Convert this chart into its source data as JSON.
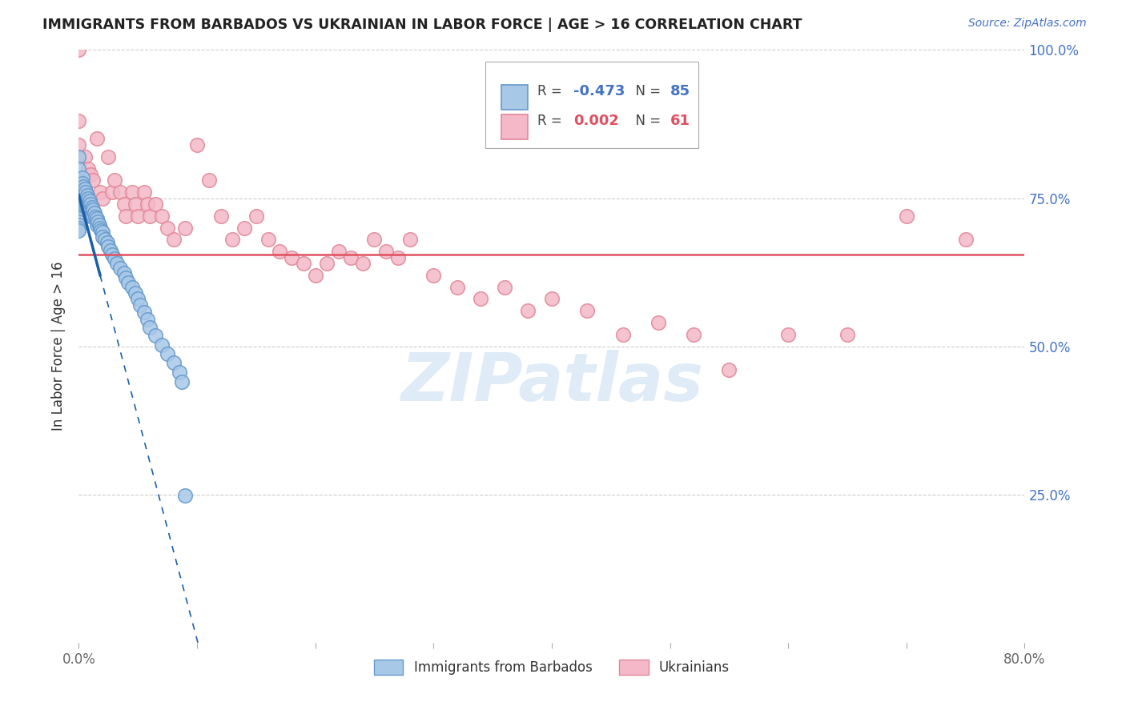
{
  "title": "IMMIGRANTS FROM BARBADOS VS UKRAINIAN IN LABOR FORCE | AGE > 16 CORRELATION CHART",
  "source": "Source: ZipAtlas.com",
  "ylabel": "In Labor Force | Age > 16",
  "xlim": [
    0.0,
    0.8
  ],
  "ylim": [
    0.0,
    1.0
  ],
  "barbados_color": "#a8c8e8",
  "barbados_edge": "#6699cc",
  "ukrainian_color": "#f4b8c8",
  "ukrainian_edge": "#e08898",
  "trendline_barbados_color": "#1a5fa8",
  "trendline_ukrainian_color": "#e05060",
  "R_barbados": -0.473,
  "N_barbados": 85,
  "R_ukrainian": 0.002,
  "N_ukrainian": 61,
  "watermark": "ZIPatlas",
  "grid_color": "#cccccc",
  "right_axis_color": "#4472c4",
  "barbados_x": [
    0.0,
    0.0,
    0.0,
    0.0,
    0.0,
    0.0,
    0.0,
    0.0,
    0.0,
    0.0,
    0.0,
    0.0,
    0.0,
    0.0,
    0.0,
    0.0,
    0.0,
    0.0,
    0.0,
    0.0,
    0.003,
    0.003,
    0.003,
    0.003,
    0.003,
    0.004,
    0.004,
    0.004,
    0.004,
    0.005,
    0.005,
    0.005,
    0.006,
    0.006,
    0.006,
    0.007,
    0.007,
    0.007,
    0.008,
    0.008,
    0.008,
    0.009,
    0.009,
    0.01,
    0.01,
    0.01,
    0.011,
    0.011,
    0.012,
    0.012,
    0.013,
    0.014,
    0.015,
    0.015,
    0.016,
    0.017,
    0.018,
    0.019,
    0.02,
    0.02,
    0.022,
    0.024,
    0.025,
    0.027,
    0.028,
    0.03,
    0.032,
    0.035,
    0.038,
    0.04,
    0.042,
    0.045,
    0.048,
    0.05,
    0.052,
    0.055,
    0.058,
    0.06,
    0.065,
    0.07,
    0.075,
    0.08,
    0.085,
    0.087,
    0.09
  ],
  "barbados_y": [
    0.82,
    0.8,
    0.78,
    0.775,
    0.77,
    0.765,
    0.76,
    0.755,
    0.75,
    0.745,
    0.74,
    0.735,
    0.73,
    0.725,
    0.72,
    0.715,
    0.71,
    0.705,
    0.7,
    0.695,
    0.785,
    0.775,
    0.765,
    0.755,
    0.745,
    0.77,
    0.76,
    0.75,
    0.74,
    0.765,
    0.755,
    0.745,
    0.76,
    0.75,
    0.74,
    0.755,
    0.745,
    0.735,
    0.75,
    0.74,
    0.73,
    0.745,
    0.735,
    0.74,
    0.73,
    0.72,
    0.735,
    0.725,
    0.73,
    0.72,
    0.725,
    0.718,
    0.715,
    0.705,
    0.71,
    0.705,
    0.7,
    0.695,
    0.692,
    0.685,
    0.68,
    0.675,
    0.668,
    0.662,
    0.655,
    0.648,
    0.64,
    0.632,
    0.624,
    0.616,
    0.608,
    0.6,
    0.59,
    0.58,
    0.57,
    0.558,
    0.545,
    0.532,
    0.518,
    0.502,
    0.488,
    0.472,
    0.456,
    0.44,
    0.248
  ],
  "ukrainian_x": [
    0.0,
    0.0,
    0.0,
    0.005,
    0.008,
    0.01,
    0.012,
    0.015,
    0.018,
    0.02,
    0.025,
    0.028,
    0.03,
    0.035,
    0.038,
    0.04,
    0.045,
    0.048,
    0.05,
    0.055,
    0.058,
    0.06,
    0.065,
    0.07,
    0.075,
    0.08,
    0.09,
    0.1,
    0.11,
    0.12,
    0.13,
    0.14,
    0.15,
    0.16,
    0.17,
    0.18,
    0.19,
    0.2,
    0.21,
    0.22,
    0.23,
    0.24,
    0.25,
    0.26,
    0.27,
    0.28,
    0.3,
    0.32,
    0.34,
    0.36,
    0.38,
    0.4,
    0.43,
    0.46,
    0.49,
    0.52,
    0.55,
    0.6,
    0.65,
    0.7,
    0.75
  ],
  "ukrainian_y": [
    1.0,
    0.88,
    0.84,
    0.82,
    0.8,
    0.79,
    0.78,
    0.85,
    0.76,
    0.75,
    0.82,
    0.76,
    0.78,
    0.76,
    0.74,
    0.72,
    0.76,
    0.74,
    0.72,
    0.76,
    0.74,
    0.72,
    0.74,
    0.72,
    0.7,
    0.68,
    0.7,
    0.84,
    0.78,
    0.72,
    0.68,
    0.7,
    0.72,
    0.68,
    0.66,
    0.65,
    0.64,
    0.62,
    0.64,
    0.66,
    0.65,
    0.64,
    0.68,
    0.66,
    0.65,
    0.68,
    0.62,
    0.6,
    0.58,
    0.6,
    0.56,
    0.58,
    0.56,
    0.52,
    0.54,
    0.52,
    0.46,
    0.52,
    0.52,
    0.72,
    0.68
  ],
  "trend_b_x0": 0.0,
  "trend_b_y0": 0.755,
  "trend_b_slope": -7.5,
  "trend_u_y": 0.655,
  "solid_cutoff": 0.018
}
